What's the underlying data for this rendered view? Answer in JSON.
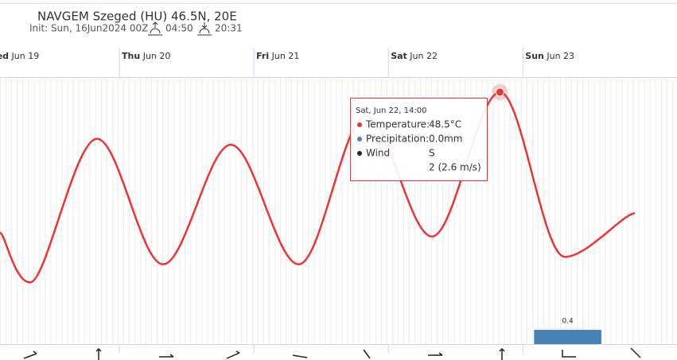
{
  "chart_data": {
    "type": "line",
    "title": "NAVGEM Szeged (HU) 46.5N, 20E",
    "subtitle": "Init: Sun, 16Jun2024 00Z",
    "sunrise": "04:50",
    "sunset": "20:31",
    "days": [
      {
        "x": 0,
        "day": "Wed",
        "date": "Jun 19"
      },
      {
        "x": 24,
        "day": "Thu",
        "date": "Jun 20"
      },
      {
        "x": 48,
        "day": "Fri",
        "date": "Jun 21"
      },
      {
        "x": 72,
        "day": "Sat",
        "date": "Jun 22"
      },
      {
        "x": 96,
        "day": "Sun",
        "date": "Jun 23"
      }
    ],
    "xlim": [
      2.7,
      123.5
    ],
    "ylim": [
      15,
      50.5
    ],
    "y2lim": [
      0,
      7.5
    ],
    "series": [
      {
        "name": "Temperature",
        "color": "#ee3333",
        "x": [
          2.7,
          8.1,
          20,
          31.8,
          43.9,
          56,
          68,
          79.8,
          91.9,
          103.5,
          116
        ],
        "values": [
          29.8,
          23.2,
          42.3,
          25.6,
          41.5,
          25.6,
          45.4,
          29.3,
          48.5,
          26.6,
          32.4
        ]
      },
      {
        "name": "Precipitation",
        "color": "#4682b4",
        "axis": "y2",
        "x_start": [
          98
        ],
        "x_end": [
          110
        ],
        "values": [
          0.4
        ]
      }
    ],
    "tooltip": {
      "date": "Sat, Jun 22, 14:00",
      "rows": [
        {
          "label": "Temperature:",
          "value": "48.5°C",
          "color": "#ee3333"
        },
        {
          "label": "Precipitation:",
          "value": "0.0mm",
          "color": "#4682b4"
        },
        {
          "label": "Wind",
          "value": "S",
          "color": "#222222"
        }
      ],
      "wind_speed": "2 (2.6 m/s)"
    }
  }
}
